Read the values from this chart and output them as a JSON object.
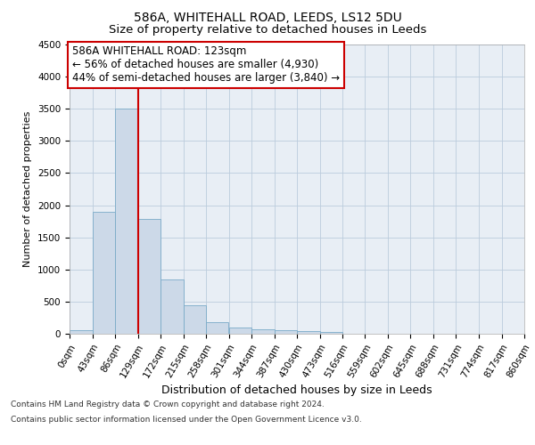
{
  "title_line1": "586A, WHITEHALL ROAD, LEEDS, LS12 5DU",
  "title_line2": "Size of property relative to detached houses in Leeds",
  "xlabel": "Distribution of detached houses by size in Leeds",
  "ylabel": "Number of detached properties",
  "bar_edges": [
    0,
    43,
    86,
    129,
    172,
    215,
    258,
    301,
    344,
    387,
    430,
    473,
    516,
    559,
    602,
    645,
    688,
    731,
    774,
    817,
    860
  ],
  "bar_heights": [
    50,
    1900,
    3500,
    1780,
    850,
    450,
    175,
    100,
    70,
    55,
    40,
    30,
    0,
    0,
    0,
    0,
    0,
    0,
    0,
    0
  ],
  "bar_color": "#ccd9e8",
  "bar_edgecolor": "#7aaac8",
  "grid_color": "#bbccdd",
  "background_color": "#e8eef5",
  "vline_x": 129,
  "vline_color": "#cc0000",
  "annotation_text_line1": "586A WHITEHALL ROAD: 123sqm",
  "annotation_text_line2": "← 56% of detached houses are smaller (4,930)",
  "annotation_text_line3": "44% of semi-detached houses are larger (3,840) →",
  "annotation_box_edgecolor": "#cc0000",
  "annotation_box_facecolor": "#ffffff",
  "ylim": [
    0,
    4500
  ],
  "yticks": [
    0,
    500,
    1000,
    1500,
    2000,
    2500,
    3000,
    3500,
    4000,
    4500
  ],
  "footer_line1": "Contains HM Land Registry data © Crown copyright and database right 2024.",
  "footer_line2": "Contains public sector information licensed under the Open Government Licence v3.0.",
  "title1_fontsize": 10,
  "title2_fontsize": 9.5,
  "xlabel_fontsize": 9,
  "ylabel_fontsize": 8,
  "tick_fontsize": 7.5,
  "annotation_fontsize": 8.5,
  "footer_fontsize": 6.5
}
